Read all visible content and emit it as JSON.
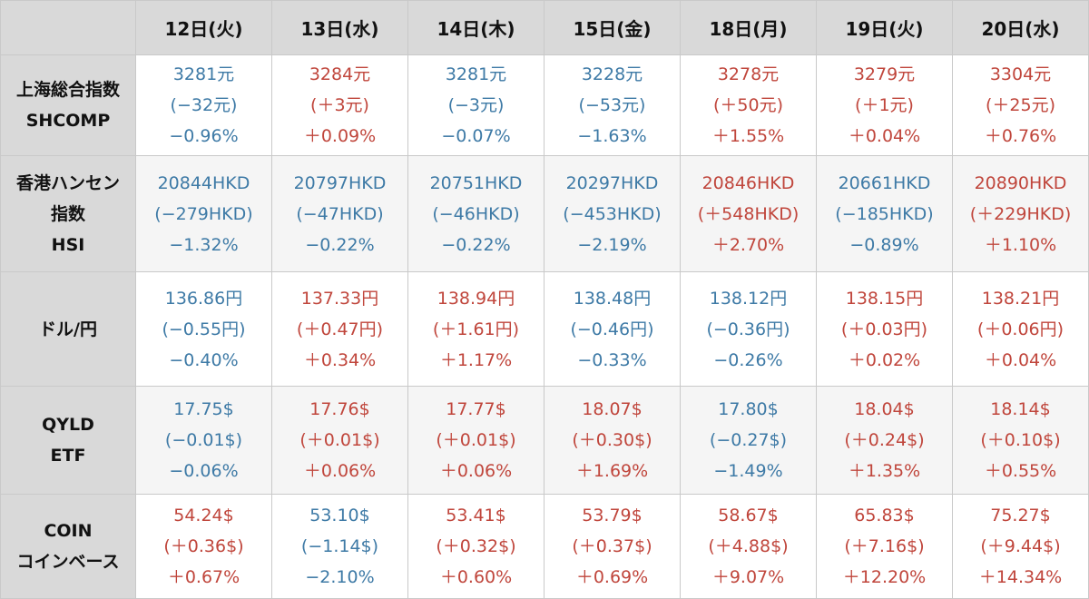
{
  "colors": {
    "up": "#c0463c",
    "down": "#3e7aa6",
    "header_bg": "#d9d9d9",
    "alt_row_bg": "#f5f5f5"
  },
  "columns": [
    "12日(火)",
    "13日(水)",
    "14日(木)",
    "15日(金)",
    "18日(月)",
    "19日(火)",
    "20日(水)"
  ],
  "rows": [
    {
      "label": [
        "上海総合指数",
        "SHCOMP"
      ],
      "cells": [
        {
          "dir": "down",
          "lines": [
            "3281元",
            "(−32元)",
            "−0.96%"
          ]
        },
        {
          "dir": "up",
          "lines": [
            "3284元",
            "(＋3元)",
            "＋0.09%"
          ]
        },
        {
          "dir": "down",
          "lines": [
            "3281元",
            "(−3元)",
            "−0.07%"
          ]
        },
        {
          "dir": "down",
          "lines": [
            "3228元",
            "(−53元)",
            "−1.63%"
          ]
        },
        {
          "dir": "up",
          "lines": [
            "3278元",
            "(＋50元)",
            "＋1.55%"
          ]
        },
        {
          "dir": "up",
          "lines": [
            "3279元",
            "(＋1元)",
            "＋0.04%"
          ]
        },
        {
          "dir": "up",
          "lines": [
            "3304元",
            "(＋25元)",
            "＋0.76%"
          ]
        }
      ]
    },
    {
      "label": [
        "香港ハンセン",
        "指数",
        "HSI"
      ],
      "cells": [
        {
          "dir": "down",
          "lines": [
            "20844HKD",
            "(−279HKD)",
            "−1.32%"
          ]
        },
        {
          "dir": "down",
          "lines": [
            "20797HKD",
            "(−47HKD)",
            "−0.22%"
          ]
        },
        {
          "dir": "down",
          "lines": [
            "20751HKD",
            "(−46HKD)",
            "−0.22%"
          ]
        },
        {
          "dir": "down",
          "lines": [
            "20297HKD",
            "(−453HKD)",
            "−2.19%"
          ]
        },
        {
          "dir": "up",
          "lines": [
            "20846HKD",
            "(＋548HKD)",
            "＋2.70%"
          ]
        },
        {
          "dir": "down",
          "lines": [
            "20661HKD",
            "(−185HKD)",
            "−0.89%"
          ]
        },
        {
          "dir": "up",
          "lines": [
            "20890HKD",
            "(＋229HKD)",
            "＋1.10%"
          ]
        }
      ]
    },
    {
      "label": [
        "ドル/円"
      ],
      "cells": [
        {
          "dir": "down",
          "lines": [
            "136.86円",
            "(−0.55円)",
            "−0.40%"
          ]
        },
        {
          "dir": "up",
          "lines": [
            "137.33円",
            "(＋0.47円)",
            "＋0.34%"
          ]
        },
        {
          "dir": "up",
          "lines": [
            "138.94円",
            "(＋1.61円)",
            "＋1.17%"
          ]
        },
        {
          "dir": "down",
          "lines": [
            "138.48円",
            "(−0.46円)",
            "−0.33%"
          ]
        },
        {
          "dir": "down",
          "lines": [
            "138.12円",
            "(−0.36円)",
            "−0.26%"
          ]
        },
        {
          "dir": "up",
          "lines": [
            "138.15円",
            "(＋0.03円)",
            "＋0.02%"
          ]
        },
        {
          "dir": "up",
          "lines": [
            "138.21円",
            "(＋0.06円)",
            "＋0.04%"
          ]
        }
      ]
    },
    {
      "label": [
        "QYLD",
        "ETF"
      ],
      "cells": [
        {
          "dir": "down",
          "lines": [
            "17.75$",
            "(−0.01$)",
            "−0.06%"
          ]
        },
        {
          "dir": "up",
          "lines": [
            "17.76$",
            "(＋0.01$)",
            "＋0.06%"
          ]
        },
        {
          "dir": "up",
          "lines": [
            "17.77$",
            "(＋0.01$)",
            "＋0.06%"
          ]
        },
        {
          "dir": "up",
          "lines": [
            "18.07$",
            "(＋0.30$)",
            "＋1.69%"
          ]
        },
        {
          "dir": "down",
          "lines": [
            "17.80$",
            "(−0.27$)",
            "−1.49%"
          ]
        },
        {
          "dir": "up",
          "lines": [
            "18.04$",
            "(＋0.24$)",
            "＋1.35%"
          ]
        },
        {
          "dir": "up",
          "lines": [
            "18.14$",
            "(＋0.10$)",
            "＋0.55%"
          ]
        }
      ]
    },
    {
      "label": [
        "COIN",
        "コインベース"
      ],
      "cells": [
        {
          "dir": "up",
          "lines": [
            "54.24$",
            "(＋0.36$)",
            "＋0.67%"
          ]
        },
        {
          "dir": "down",
          "lines": [
            "53.10$",
            "(−1.14$)",
            "−2.10%"
          ]
        },
        {
          "dir": "up",
          "lines": [
            "53.41$",
            "(＋0.32$)",
            "＋0.60%"
          ]
        },
        {
          "dir": "up",
          "lines": [
            "53.79$",
            "(＋0.37$)",
            "＋0.69%"
          ]
        },
        {
          "dir": "up",
          "lines": [
            "58.67$",
            "(＋4.88$)",
            "＋9.07%"
          ]
        },
        {
          "dir": "up",
          "lines": [
            "65.83$",
            "(＋7.16$)",
            "＋12.20%"
          ]
        },
        {
          "dir": "up",
          "lines": [
            "75.27$",
            "(＋9.44$)",
            "＋14.34%"
          ]
        }
      ]
    }
  ]
}
